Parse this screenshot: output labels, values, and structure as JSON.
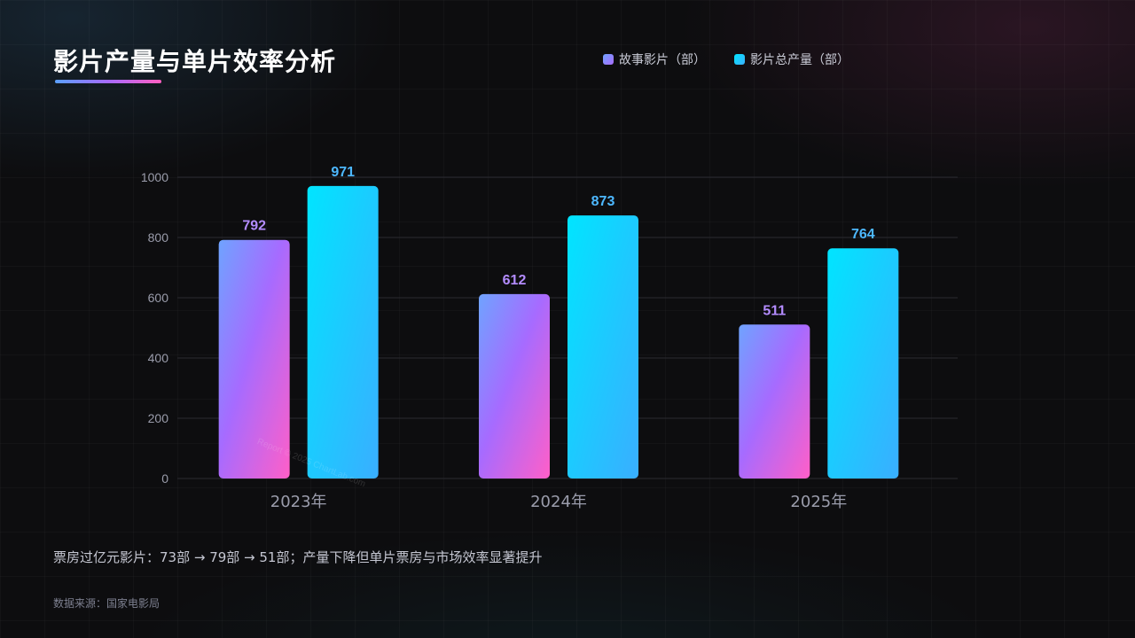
{
  "title": "影片产量与单片效率分析",
  "legend": {
    "series_a": "故事影片（部）",
    "series_b": "影片总产量（部）"
  },
  "note": "票房过亿元影片：73部 → 79部 → 51部；产量下降但单片票房与市场效率显著提升",
  "source": "数据来源：国家电影局",
  "watermark": "Report © 2025 ChartLab.com",
  "colors": {
    "series_a_top": "#6fa3ff",
    "series_a_mid": "#a66bff",
    "series_a_bottom": "#ff5fc8",
    "series_b_top": "#00e5ff",
    "series_b_bottom": "#3aaeff",
    "label_a": "#b48cff",
    "label_b": "#4db8ff",
    "axis_text": "#9a9cab",
    "gridline": "#2a2a30"
  },
  "chart_data": {
    "type": "bar",
    "categories": [
      "2023年",
      "2024年",
      "2025年"
    ],
    "series": [
      {
        "name": "故事影片（部）",
        "values": [
          792,
          612,
          511
        ]
      },
      {
        "name": "影片总产量（部）",
        "values": [
          971,
          873,
          764
        ]
      }
    ],
    "ylim": [
      0,
      1000
    ],
    "yticks": [
      0,
      200,
      400,
      600,
      800,
      1000
    ],
    "grid": true,
    "legend_position": "top-right"
  }
}
